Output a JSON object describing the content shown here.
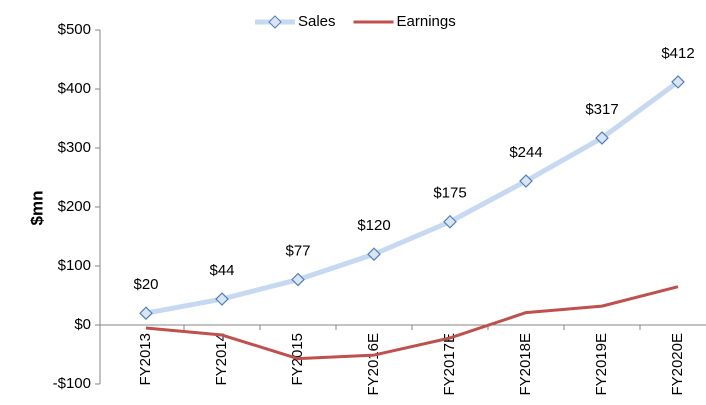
{
  "chart_data": {
    "type": "line",
    "y_label": "$mn",
    "categories": [
      "FY2013",
      "FY2014",
      "FY2015",
      "FY2016E",
      "FY2017E",
      "FY2018E",
      "FY2019E",
      "FY2020E"
    ],
    "series": [
      {
        "name": "Sales",
        "color": "#c6d9f1",
        "marker_color": "#4f81bd",
        "marker": "diamond",
        "values": [
          20,
          44,
          77,
          120,
          175,
          244,
          317,
          412
        ],
        "value_labels": [
          "$20",
          "$44",
          "$77",
          "$120",
          "$175",
          "$244",
          "$317",
          "$412"
        ]
      },
      {
        "name": "Earnings",
        "color": "#c0504d",
        "values": [
          -5,
          -17,
          -57,
          -51,
          -22,
          21,
          32,
          65
        ]
      }
    ],
    "ylim": [
      -100,
      500
    ],
    "yticks": [
      {
        "value": -100,
        "label": "-$100"
      },
      {
        "value": 0,
        "label": "$0"
      },
      {
        "value": 100,
        "label": "$100"
      },
      {
        "value": 200,
        "label": "$200"
      },
      {
        "value": 300,
        "label": "$300"
      },
      {
        "value": 400,
        "label": "$400"
      },
      {
        "value": 500,
        "label": "$500"
      }
    ],
    "legend": "top"
  }
}
